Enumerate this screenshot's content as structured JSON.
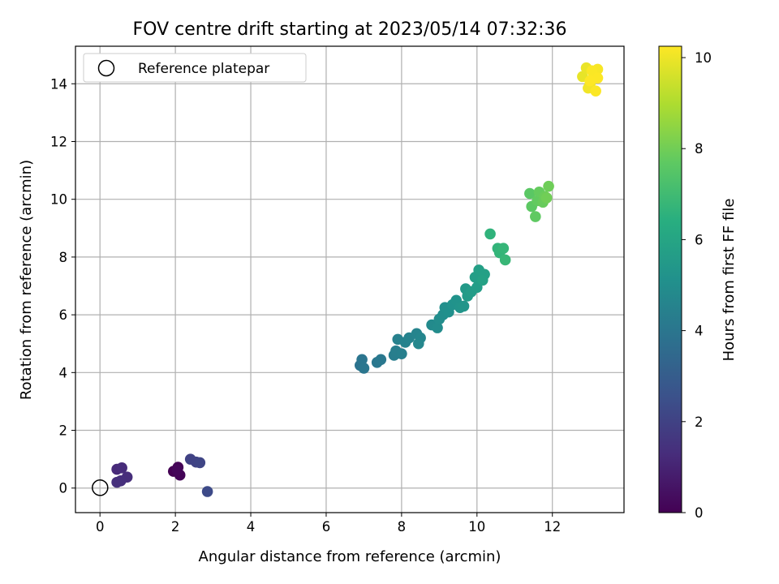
{
  "chart_data": {
    "type": "scatter",
    "title": "FOV centre drift starting at 2023/05/14 07:32:36",
    "xlabel": "Angular distance from reference (arcmin)",
    "ylabel": "Rotation from reference (arcmin)",
    "xlim": [
      -0.65,
      13.9
    ],
    "ylim": [
      -0.85,
      15.3
    ],
    "xticks": [
      0,
      2,
      4,
      6,
      8,
      10,
      12
    ],
    "yticks": [
      0,
      2,
      4,
      6,
      8,
      10,
      12,
      14
    ],
    "grid": true,
    "legend": {
      "placement": "top-left",
      "entries": [
        "Reference platepar"
      ]
    },
    "reference_point": {
      "x": 0,
      "y": 0
    },
    "colorbar": {
      "label": "Hours from first FF file",
      "colormap": "viridis",
      "range": [
        0,
        10.25
      ],
      "ticks": [
        0,
        2,
        4,
        6,
        8,
        10
      ]
    },
    "points": [
      {
        "x": 1.95,
        "y": 0.58,
        "h": 0.0
      },
      {
        "x": 2.07,
        "y": 0.72,
        "h": 0.05
      },
      {
        "x": 2.12,
        "y": 0.45,
        "h": 0.1
      },
      {
        "x": 2.05,
        "y": 0.62,
        "h": 0.15
      },
      {
        "x": 0.45,
        "y": 0.65,
        "h": 1.2
      },
      {
        "x": 0.58,
        "y": 0.7,
        "h": 1.25
      },
      {
        "x": 0.72,
        "y": 0.38,
        "h": 1.3
      },
      {
        "x": 0.55,
        "y": 0.25,
        "h": 1.35
      },
      {
        "x": 0.45,
        "y": 0.2,
        "h": 1.4
      },
      {
        "x": 2.4,
        "y": 1.0,
        "h": 2.0
      },
      {
        "x": 2.55,
        "y": 0.9,
        "h": 2.05
      },
      {
        "x": 2.65,
        "y": 0.88,
        "h": 2.1
      },
      {
        "x": 2.85,
        "y": -0.12,
        "h": 2.3
      },
      {
        "x": 6.9,
        "y": 4.25,
        "h": 3.9
      },
      {
        "x": 6.95,
        "y": 4.45,
        "h": 3.95
      },
      {
        "x": 7.0,
        "y": 4.15,
        "h": 4.0
      },
      {
        "x": 7.35,
        "y": 4.35,
        "h": 4.05
      },
      {
        "x": 7.45,
        "y": 4.45,
        "h": 4.1
      },
      {
        "x": 7.8,
        "y": 4.6,
        "h": 4.3
      },
      {
        "x": 7.85,
        "y": 4.75,
        "h": 4.35
      },
      {
        "x": 8.0,
        "y": 4.65,
        "h": 4.4
      },
      {
        "x": 7.9,
        "y": 5.15,
        "h": 4.45
      },
      {
        "x": 8.1,
        "y": 5.05,
        "h": 4.5
      },
      {
        "x": 8.2,
        "y": 5.2,
        "h": 4.55
      },
      {
        "x": 8.4,
        "y": 5.35,
        "h": 4.6
      },
      {
        "x": 8.5,
        "y": 5.2,
        "h": 4.65
      },
      {
        "x": 8.45,
        "y": 5.0,
        "h": 4.7
      },
      {
        "x": 8.8,
        "y": 5.65,
        "h": 4.85
      },
      {
        "x": 8.95,
        "y": 5.55,
        "h": 4.9
      },
      {
        "x": 9.0,
        "y": 5.85,
        "h": 4.95
      },
      {
        "x": 9.1,
        "y": 6.0,
        "h": 5.0
      },
      {
        "x": 9.15,
        "y": 6.25,
        "h": 5.05
      },
      {
        "x": 9.25,
        "y": 6.1,
        "h": 5.1
      },
      {
        "x": 9.35,
        "y": 6.35,
        "h": 5.15
      },
      {
        "x": 9.45,
        "y": 6.5,
        "h": 5.2
      },
      {
        "x": 9.55,
        "y": 6.25,
        "h": 5.25
      },
      {
        "x": 9.65,
        "y": 6.3,
        "h": 5.3
      },
      {
        "x": 9.7,
        "y": 6.9,
        "h": 5.5
      },
      {
        "x": 9.75,
        "y": 6.65,
        "h": 5.55
      },
      {
        "x": 9.85,
        "y": 6.8,
        "h": 5.6
      },
      {
        "x": 10.0,
        "y": 6.95,
        "h": 5.65
      },
      {
        "x": 9.95,
        "y": 7.3,
        "h": 5.7
      },
      {
        "x": 10.05,
        "y": 7.55,
        "h": 5.75
      },
      {
        "x": 10.2,
        "y": 7.4,
        "h": 5.8
      },
      {
        "x": 10.15,
        "y": 7.2,
        "h": 5.85
      },
      {
        "x": 10.35,
        "y": 8.8,
        "h": 6.6
      },
      {
        "x": 10.55,
        "y": 8.3,
        "h": 6.65
      },
      {
        "x": 10.6,
        "y": 8.15,
        "h": 6.7
      },
      {
        "x": 10.7,
        "y": 8.3,
        "h": 6.75
      },
      {
        "x": 10.75,
        "y": 7.9,
        "h": 6.8
      },
      {
        "x": 11.4,
        "y": 10.2,
        "h": 7.6
      },
      {
        "x": 11.45,
        "y": 9.75,
        "h": 7.65
      },
      {
        "x": 11.55,
        "y": 9.4,
        "h": 7.7
      },
      {
        "x": 11.6,
        "y": 9.95,
        "h": 7.75
      },
      {
        "x": 11.65,
        "y": 10.25,
        "h": 7.8
      },
      {
        "x": 11.75,
        "y": 9.9,
        "h": 7.85
      },
      {
        "x": 11.8,
        "y": 10.1,
        "h": 7.9
      },
      {
        "x": 11.9,
        "y": 10.45,
        "h": 7.95
      },
      {
        "x": 11.85,
        "y": 10.05,
        "h": 8.0
      },
      {
        "x": 12.8,
        "y": 14.25,
        "h": 9.9
      },
      {
        "x": 12.9,
        "y": 14.55,
        "h": 9.95
      },
      {
        "x": 13.0,
        "y": 14.0,
        "h": 10.0
      },
      {
        "x": 12.95,
        "y": 13.85,
        "h": 10.05
      },
      {
        "x": 13.1,
        "y": 14.3,
        "h": 10.1
      },
      {
        "x": 13.2,
        "y": 14.5,
        "h": 10.15
      },
      {
        "x": 13.05,
        "y": 14.45,
        "h": 10.2
      },
      {
        "x": 13.15,
        "y": 13.75,
        "h": 10.22
      },
      {
        "x": 13.2,
        "y": 14.2,
        "h": 10.24
      },
      {
        "x": 13.0,
        "y": 14.1,
        "h": 10.25
      }
    ]
  }
}
